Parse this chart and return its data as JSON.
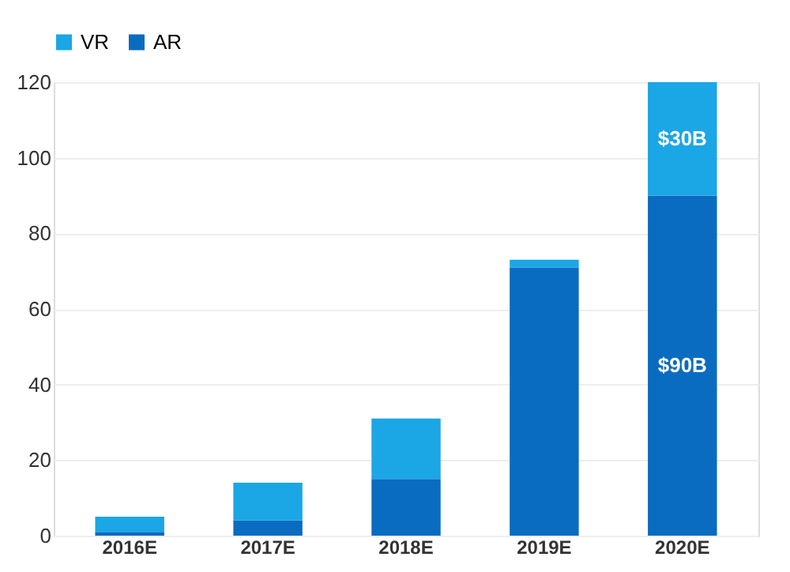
{
  "chart_data": {
    "type": "bar",
    "stacked": true,
    "categories": [
      "2016E",
      "2017E",
      "2018E",
      "2019E",
      "2020E"
    ],
    "series": [
      {
        "name": "AR",
        "color": "#0a6cc0",
        "values": [
          1,
          4,
          15,
          71,
          90
        ],
        "value_labels": [
          null,
          null,
          null,
          null,
          "$90B"
        ]
      },
      {
        "name": "VR",
        "color": "#1ba6e6",
        "values": [
          4,
          10,
          16,
          2,
          30
        ],
        "value_labels": [
          null,
          null,
          null,
          null,
          "$30B"
        ]
      }
    ],
    "ylim": [
      0,
      120
    ],
    "yticks": [
      0,
      20,
      40,
      60,
      80,
      100,
      120
    ],
    "grid": "y",
    "legend": "top"
  }
}
